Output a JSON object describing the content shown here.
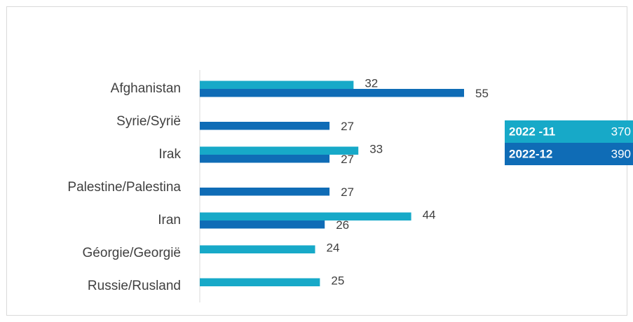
{
  "chart_data": {
    "type": "bar",
    "orientation": "horizontal",
    "categories": [
      "Afghanistan",
      "Syrie/Syrië",
      "Irak",
      "Palestine/Palestina",
      "Iran",
      "Géorgie/Georgië",
      "Russie/Rusland"
    ],
    "series": [
      {
        "name": "2022 -11",
        "color": "#17a9c8",
        "total": 370,
        "values": [
          32,
          null,
          33,
          null,
          44,
          24,
          25
        ]
      },
      {
        "name": "2022-12",
        "color": "#0f6cb6",
        "total": 390,
        "values": [
          55,
          27,
          27,
          27,
          26,
          null,
          null
        ]
      }
    ]
  }
}
